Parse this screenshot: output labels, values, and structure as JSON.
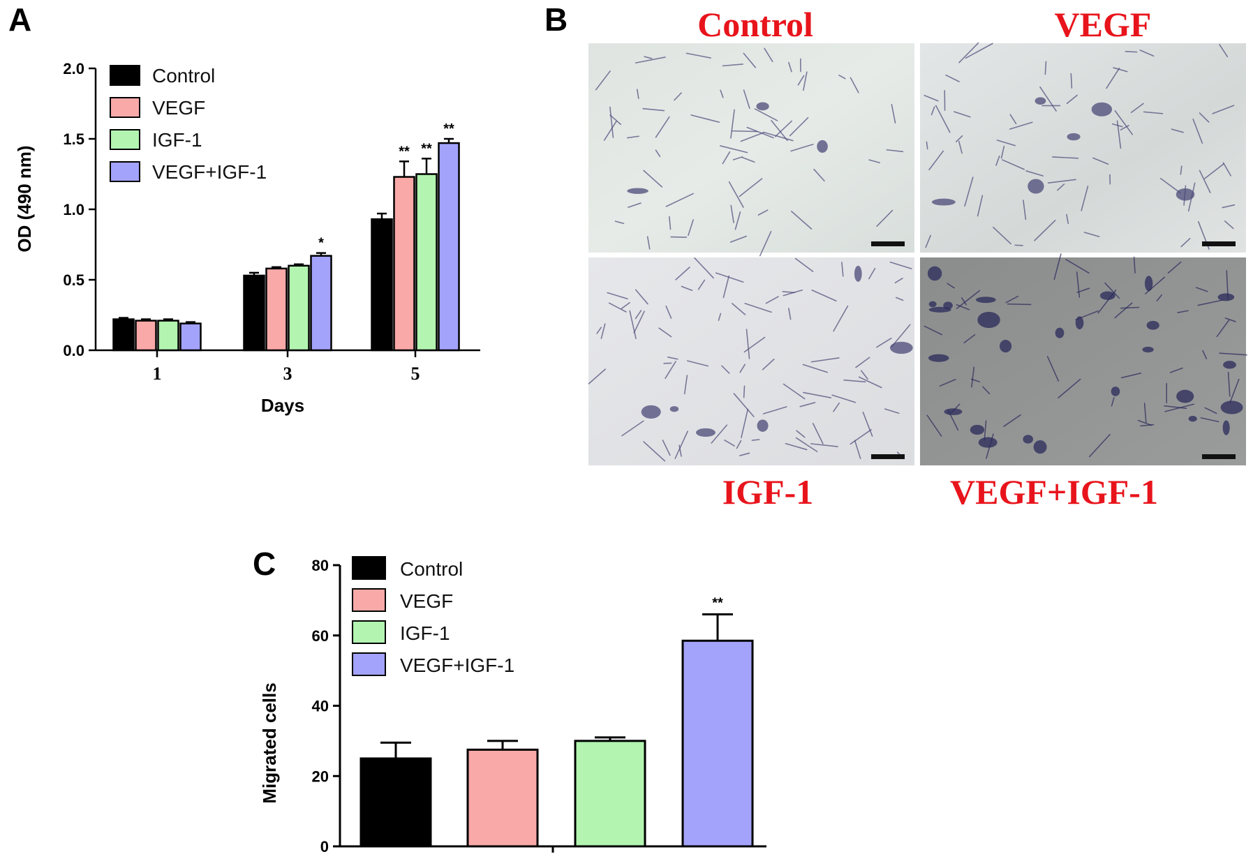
{
  "panels": {
    "A": "A",
    "B": "B",
    "C": "C"
  },
  "colors": {
    "Control": "#000000",
    "VEGF": "#f9a9a8",
    "IGF-1": "#b2f4b0",
    "VEGF+IGF-1": "#a3a3fb",
    "micrograph_label": "#e8141c"
  },
  "micrographs": {
    "labels": [
      "Control",
      "VEGF",
      "IGF-1",
      "VEGF+IGF-1"
    ]
  },
  "chart_data": [
    {
      "panel": "A",
      "type": "bar",
      "xlabel": "Days",
      "ylabel": "OD (490 nm)",
      "categories": [
        "1",
        "3",
        "5"
      ],
      "ylim": [
        0,
        2.0
      ],
      "yticks": [
        "0.0",
        "0.5",
        "1.0",
        "1.5",
        "2.0"
      ],
      "legend_position": "top-left",
      "series": [
        {
          "name": "Control",
          "values": [
            0.22,
            0.53,
            0.93
          ],
          "errors": [
            0.01,
            0.02,
            0.04
          ],
          "sig": [
            "",
            "",
            ""
          ]
        },
        {
          "name": "VEGF",
          "values": [
            0.21,
            0.58,
            1.23
          ],
          "errors": [
            0.01,
            0.01,
            0.11
          ],
          "sig": [
            "",
            "",
            "**"
          ]
        },
        {
          "name": "IGF-1",
          "values": [
            0.21,
            0.6,
            1.25
          ],
          "errors": [
            0.01,
            0.01,
            0.11
          ],
          "sig": [
            "",
            "",
            "**"
          ]
        },
        {
          "name": "VEGF+IGF-1",
          "values": [
            0.19,
            0.67,
            1.47
          ],
          "errors": [
            0.01,
            0.02,
            0.03
          ],
          "sig": [
            "",
            "*",
            "**"
          ]
        }
      ]
    },
    {
      "panel": "C",
      "type": "bar",
      "xlabel": "",
      "ylabel": "Migrated cells",
      "categories": [
        "Control",
        "VEGF",
        "IGF-1",
        "VEGF+IGF-1"
      ],
      "ylim": [
        0,
        80
      ],
      "yticks": [
        "0",
        "20",
        "40",
        "60",
        "80"
      ],
      "legend_position": "top-left",
      "values": [
        25,
        27.5,
        30,
        58.5
      ],
      "errors": [
        4.5,
        2.5,
        1,
        7.5
      ],
      "sig": [
        "",
        "",
        "",
        "**"
      ]
    }
  ]
}
